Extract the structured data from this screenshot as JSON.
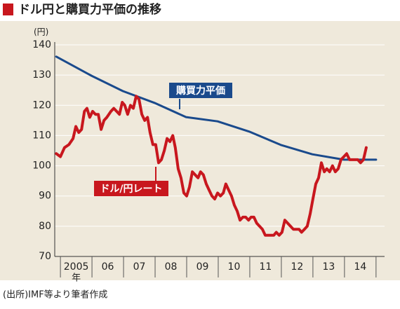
{
  "chart_data": {
    "type": "line",
    "title": "ドル円と購買力平価の推移",
    "y_unit": "(円)",
    "x_unit": "年",
    "source": "(出所)IMF等より筆者作成",
    "xlim": [
      2004.82,
      2015.27
    ],
    "ylim": [
      70,
      140
    ],
    "yticks": [
      70,
      80,
      90,
      100,
      110,
      120,
      130,
      140
    ],
    "xticks": [
      {
        "value": 2005.5,
        "label": "2005"
      },
      {
        "value": 2006.5,
        "label": "06"
      },
      {
        "value": 2007.5,
        "label": "07"
      },
      {
        "value": 2008.5,
        "label": "08"
      },
      {
        "value": 2009.5,
        "label": "09"
      },
      {
        "value": 2010.5,
        "label": "10"
      },
      {
        "value": 2011.5,
        "label": "11"
      },
      {
        "value": 2012.5,
        "label": "12"
      },
      {
        "value": 2013.5,
        "label": "13"
      },
      {
        "value": 2014.5,
        "label": "14"
      }
    ],
    "grid": true,
    "series": [
      {
        "name": "購買力平価",
        "color": "#1a4a8c",
        "x": [
          2004.87,
          2005.98,
          2006.98,
          2007.98,
          2008.98,
          2009.98,
          2010.98,
          2011.98,
          2012.98,
          2013.98,
          2015.0
        ],
        "values": [
          136.1,
          129.8,
          124.7,
          120.8,
          116.1,
          114.7,
          111.3,
          106.9,
          103.8,
          102.0,
          102.0
        ]
      },
      {
        "name": "ドル/円レート",
        "color": "#c8171e",
        "x": [
          2004.87,
          2005.0,
          2005.13,
          2005.27,
          2005.4,
          2005.49,
          2005.58,
          2005.67,
          2005.76,
          2005.84,
          2005.93,
          2006.02,
          2006.11,
          2006.2,
          2006.29,
          2006.38,
          2006.47,
          2006.6,
          2006.69,
          2006.78,
          2006.87,
          2006.96,
          2007.04,
          2007.13,
          2007.22,
          2007.31,
          2007.4,
          2007.49,
          2007.58,
          2007.67,
          2007.76,
          2007.84,
          2007.93,
          2008.02,
          2008.11,
          2008.2,
          2008.29,
          2008.38,
          2008.47,
          2008.56,
          2008.64,
          2008.73,
          2008.82,
          2008.91,
          2009.0,
          2009.09,
          2009.18,
          2009.27,
          2009.36,
          2009.44,
          2009.53,
          2009.62,
          2009.71,
          2009.8,
          2009.89,
          2009.98,
          2010.07,
          2010.16,
          2010.24,
          2010.33,
          2010.42,
          2010.51,
          2010.6,
          2010.69,
          2010.78,
          2010.87,
          2010.96,
          2011.04,
          2011.13,
          2011.22,
          2011.31,
          2011.4,
          2011.49,
          2011.58,
          2011.67,
          2011.76,
          2011.84,
          2011.93,
          2012.02,
          2012.11,
          2012.2,
          2012.29,
          2012.38,
          2012.47,
          2012.56,
          2012.64,
          2012.73,
          2012.82,
          2012.91,
          2013.0,
          2013.09,
          2013.18,
          2013.27,
          2013.36,
          2013.44,
          2013.53,
          2013.62,
          2013.71,
          2013.8,
          2013.89,
          2013.98,
          2014.07,
          2014.16,
          2014.24,
          2014.33,
          2014.42,
          2014.51,
          2014.6,
          2014.69
        ],
        "values": [
          104,
          103,
          106,
          107,
          109,
          113,
          111,
          112,
          118,
          119,
          116,
          118,
          117,
          117,
          112,
          115,
          116,
          118,
          119,
          118,
          117,
          121,
          120,
          117,
          120,
          119,
          123,
          122,
          117,
          115,
          116,
          111,
          107,
          107,
          101,
          102,
          105,
          109,
          108,
          110,
          106,
          99,
          96,
          91,
          90,
          93,
          98,
          97,
          96,
          98,
          97,
          94,
          92,
          90,
          89,
          91,
          90,
          91,
          94,
          92,
          90,
          87,
          85,
          82,
          83,
          83,
          82,
          83,
          83,
          81,
          80,
          79,
          77,
          77,
          77,
          77,
          78,
          77,
          78,
          82,
          81,
          80,
          79,
          79,
          79,
          78,
          79,
          80,
          84,
          89,
          94,
          96,
          101,
          98,
          99,
          98,
          100,
          98,
          99,
          102,
          103,
          104,
          102,
          102,
          102,
          102,
          101,
          102,
          106
        ]
      }
    ]
  }
}
